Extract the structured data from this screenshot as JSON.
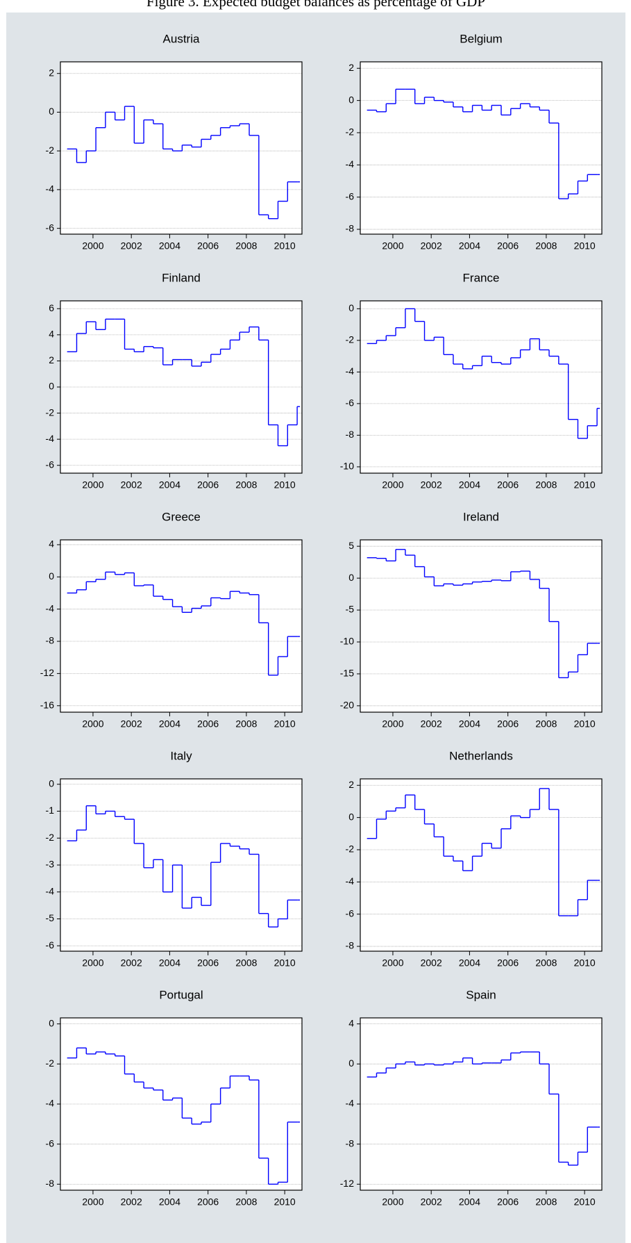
{
  "title": "Figure 3. Expected budget balances as percentage of GDP",
  "chart_data": [
    {
      "type": "line",
      "title": "Austria",
      "x": [
        1998.65,
        1999.15,
        1999.65,
        2000.15,
        2000.65,
        2001.15,
        2001.65,
        2002.15,
        2002.65,
        2003.15,
        2003.65,
        2004.15,
        2004.65,
        2005.15,
        2005.65,
        2006.15,
        2006.65,
        2007.15,
        2007.65,
        2008.15,
        2008.65,
        2009.15,
        2009.65,
        2010.15,
        2010.65
      ],
      "values": [
        -1.9,
        -2.6,
        -2.0,
        -0.8,
        0.0,
        -0.4,
        0.3,
        -1.6,
        -0.4,
        -0.6,
        -1.9,
        -2.0,
        -1.7,
        -1.8,
        -1.4,
        -1.2,
        -0.8,
        -0.7,
        -0.6,
        -1.2,
        -5.3,
        -5.5,
        -4.6,
        -3.6,
        -3.6
      ],
      "color": "#0000ff",
      "xlim": [
        1998.3,
        2010.9
      ],
      "xticks": [
        2000,
        2002,
        2004,
        2006,
        2008,
        2010
      ],
      "ylim": [
        -6.3,
        2.6
      ],
      "yticks": [
        -6,
        -4,
        -2,
        0,
        2
      ],
      "grid": true
    },
    {
      "type": "line",
      "title": "Belgium",
      "x": [
        1998.65,
        1999.15,
        1999.65,
        2000.15,
        2000.65,
        2001.15,
        2001.65,
        2002.15,
        2002.65,
        2003.15,
        2003.65,
        2004.15,
        2004.65,
        2005.15,
        2005.65,
        2006.15,
        2006.65,
        2007.15,
        2007.65,
        2008.15,
        2008.65,
        2009.15,
        2009.65,
        2010.15,
        2010.65
      ],
      "values": [
        -0.6,
        -0.7,
        -0.2,
        0.7,
        0.7,
        -0.2,
        0.2,
        0.0,
        -0.1,
        -0.4,
        -0.7,
        -0.3,
        -0.6,
        -0.3,
        -0.9,
        -0.5,
        -0.2,
        -0.4,
        -0.6,
        -1.4,
        -6.1,
        -5.8,
        -5.0,
        -4.6,
        -4.6
      ],
      "color": "#0000ff",
      "xlim": [
        1998.3,
        2010.9
      ],
      "xticks": [
        2000,
        2002,
        2004,
        2006,
        2008,
        2010
      ],
      "ylim": [
        -8.3,
        2.4
      ],
      "yticks": [
        -8,
        -6,
        -4,
        -2,
        0,
        2
      ],
      "grid": true
    },
    {
      "type": "line",
      "title": "Finland",
      "x": [
        1998.65,
        1999.15,
        1999.65,
        2000.15,
        2000.65,
        2001.15,
        2001.65,
        2002.15,
        2002.65,
        2003.15,
        2003.65,
        2004.15,
        2004.65,
        2005.15,
        2005.65,
        2006.15,
        2006.65,
        2007.15,
        2007.65,
        2008.15,
        2008.65,
        2009.15,
        2009.65,
        2010.15,
        2010.65
      ],
      "values": [
        2.7,
        4.1,
        5.0,
        4.4,
        5.2,
        5.2,
        2.9,
        2.7,
        3.1,
        3.0,
        1.7,
        2.1,
        2.1,
        1.6,
        1.9,
        2.5,
        2.9,
        3.6,
        4.2,
        4.6,
        3.6,
        -2.9,
        -4.5,
        -2.9,
        -1.5
      ],
      "color": "#0000ff",
      "xlim": [
        1998.3,
        2010.9
      ],
      "xticks": [
        2000,
        2002,
        2004,
        2006,
        2008,
        2010
      ],
      "ylim": [
        -6.6,
        6.6
      ],
      "yticks": [
        -6,
        -4,
        -2,
        0,
        2,
        4,
        6
      ],
      "grid": true
    },
    {
      "type": "line",
      "title": "France",
      "x": [
        1998.65,
        1999.15,
        1999.65,
        2000.15,
        2000.65,
        2001.15,
        2001.65,
        2002.15,
        2002.65,
        2003.15,
        2003.65,
        2004.15,
        2004.65,
        2005.15,
        2005.65,
        2006.15,
        2006.65,
        2007.15,
        2007.65,
        2008.15,
        2008.65,
        2009.15,
        2009.65,
        2010.15,
        2010.65
      ],
      "values": [
        -2.2,
        -2.0,
        -1.7,
        -1.2,
        0.0,
        -0.8,
        -2.0,
        -1.8,
        -2.9,
        -3.5,
        -3.8,
        -3.6,
        -3.0,
        -3.4,
        -3.5,
        -3.1,
        -2.6,
        -1.9,
        -2.6,
        -3.0,
        -3.5,
        -7.0,
        -8.2,
        -7.4,
        -6.3
      ],
      "color": "#0000ff",
      "xlim": [
        1998.3,
        2010.9
      ],
      "xticks": [
        2000,
        2002,
        2004,
        2006,
        2008,
        2010
      ],
      "ylim": [
        -10.4,
        0.5
      ],
      "yticks": [
        -10,
        -8,
        -6,
        -4,
        -2,
        0
      ],
      "grid": true
    },
    {
      "type": "line",
      "title": "Greece",
      "x": [
        1998.65,
        1999.15,
        1999.65,
        2000.15,
        2000.65,
        2001.15,
        2001.65,
        2002.15,
        2002.65,
        2003.15,
        2003.65,
        2004.15,
        2004.65,
        2005.15,
        2005.65,
        2006.15,
        2006.65,
        2007.15,
        2007.65,
        2008.15,
        2008.65,
        2009.15,
        2009.65,
        2010.15,
        2010.65
      ],
      "values": [
        -2.0,
        -1.6,
        -0.6,
        -0.3,
        0.6,
        0.3,
        0.5,
        -1.1,
        -1.0,
        -2.4,
        -2.8,
        -3.7,
        -4.4,
        -3.9,
        -3.6,
        -2.6,
        -2.7,
        -1.8,
        -2.0,
        -2.2,
        -5.7,
        -12.2,
        -9.9,
        -7.4,
        -7.4
      ],
      "color": "#0000ff",
      "xlim": [
        1998.3,
        2010.9
      ],
      "xticks": [
        2000,
        2002,
        2004,
        2006,
        2008,
        2010
      ],
      "ylim": [
        -16.8,
        4.6
      ],
      "yticks": [
        -16,
        -12,
        -8,
        -4,
        0,
        4
      ],
      "grid": true
    },
    {
      "type": "line",
      "title": "Ireland",
      "x": [
        1998.65,
        1999.15,
        1999.65,
        2000.15,
        2000.65,
        2001.15,
        2001.65,
        2002.15,
        2002.65,
        2003.15,
        2003.65,
        2004.15,
        2004.65,
        2005.15,
        2005.65,
        2006.15,
        2006.65,
        2007.15,
        2007.65,
        2008.15,
        2008.65,
        2009.15,
        2009.65,
        2010.15,
        2010.65
      ],
      "values": [
        3.2,
        3.1,
        2.7,
        4.5,
        3.6,
        1.8,
        0.2,
        -1.2,
        -0.9,
        -1.1,
        -0.9,
        -0.6,
        -0.5,
        -0.3,
        -0.4,
        1.0,
        1.1,
        -0.2,
        -1.6,
        -6.8,
        -15.6,
        -14.7,
        -12.0,
        -10.2,
        -10.2
      ],
      "color": "#0000ff",
      "xlim": [
        1998.3,
        2010.9
      ],
      "xticks": [
        2000,
        2002,
        2004,
        2006,
        2008,
        2010
      ],
      "ylim": [
        -21,
        6
      ],
      "yticks": [
        -20,
        -15,
        -10,
        -5,
        0,
        5
      ],
      "grid": true
    },
    {
      "type": "line",
      "title": "Italy",
      "x": [
        1998.65,
        1999.15,
        1999.65,
        2000.15,
        2000.65,
        2001.15,
        2001.65,
        2002.15,
        2002.65,
        2003.15,
        2003.65,
        2004.15,
        2004.65,
        2005.15,
        2005.65,
        2006.15,
        2006.65,
        2007.15,
        2007.65,
        2008.15,
        2008.65,
        2009.15,
        2009.65,
        2010.15,
        2010.65
      ],
      "values": [
        -2.1,
        -1.7,
        -0.8,
        -1.1,
        -1.0,
        -1.2,
        -1.3,
        -2.2,
        -3.1,
        -2.8,
        -4.0,
        -3.0,
        -4.6,
        -4.2,
        -4.5,
        -2.9,
        -2.2,
        -2.3,
        -2.4,
        -2.6,
        -4.8,
        -5.3,
        -5.0,
        -4.3,
        -4.3
      ],
      "color": "#0000ff",
      "xlim": [
        1998.3,
        2010.9
      ],
      "xticks": [
        2000,
        2002,
        2004,
        2006,
        2008,
        2010
      ],
      "ylim": [
        -6.2,
        0.2
      ],
      "yticks": [
        -6,
        -5,
        -4,
        -3,
        -2,
        -1,
        0
      ],
      "grid": true
    },
    {
      "type": "line",
      "title": "Netherlands",
      "x": [
        1998.65,
        1999.15,
        1999.65,
        2000.15,
        2000.65,
        2001.15,
        2001.65,
        2002.15,
        2002.65,
        2003.15,
        2003.65,
        2004.15,
        2004.65,
        2005.15,
        2005.65,
        2006.15,
        2006.65,
        2007.15,
        2007.65,
        2008.15,
        2008.65,
        2009.15,
        2009.65,
        2010.15,
        2010.65
      ],
      "values": [
        -1.3,
        -0.1,
        0.4,
        0.6,
        1.4,
        0.5,
        -0.4,
        -1.2,
        -2.4,
        -2.7,
        -3.3,
        -2.4,
        -1.6,
        -1.9,
        -0.7,
        0.1,
        0.0,
        0.5,
        1.8,
        0.5,
        -6.1,
        -6.1,
        -5.1,
        -3.9,
        -3.9
      ],
      "color": "#0000ff",
      "xlim": [
        1998.3,
        2010.9
      ],
      "xticks": [
        2000,
        2002,
        2004,
        2006,
        2008,
        2010
      ],
      "ylim": [
        -8.3,
        2.4
      ],
      "yticks": [
        -8,
        -6,
        -4,
        -2,
        0,
        2
      ],
      "grid": true
    },
    {
      "type": "line",
      "title": "Portugal",
      "x": [
        1998.65,
        1999.15,
        1999.65,
        2000.15,
        2000.65,
        2001.15,
        2001.65,
        2002.15,
        2002.65,
        2003.15,
        2003.65,
        2004.15,
        2004.65,
        2005.15,
        2005.65,
        2006.15,
        2006.65,
        2007.15,
        2007.65,
        2008.15,
        2008.65,
        2009.15,
        2009.65,
        2010.15,
        2010.65
      ],
      "values": [
        -1.7,
        -1.2,
        -1.5,
        -1.4,
        -1.5,
        -1.6,
        -2.5,
        -2.9,
        -3.2,
        -3.3,
        -3.8,
        -3.7,
        -4.7,
        -5.0,
        -4.9,
        -4.0,
        -3.2,
        -2.6,
        -2.6,
        -2.8,
        -6.7,
        -8.0,
        -7.9,
        -4.9,
        -4.9
      ],
      "color": "#0000ff",
      "xlim": [
        1998.3,
        2010.9
      ],
      "xticks": [
        2000,
        2002,
        2004,
        2006,
        2008,
        2010
      ],
      "ylim": [
        -8.3,
        0.3
      ],
      "yticks": [
        -8,
        -6,
        -4,
        -2,
        0
      ],
      "grid": true
    },
    {
      "type": "line",
      "title": "Spain",
      "x": [
        1998.65,
        1999.15,
        1999.65,
        2000.15,
        2000.65,
        2001.15,
        2001.65,
        2002.15,
        2002.65,
        2003.15,
        2003.65,
        2004.15,
        2004.65,
        2005.15,
        2005.65,
        2006.15,
        2006.65,
        2007.15,
        2007.65,
        2008.15,
        2008.65,
        2009.15,
        2009.65,
        2010.15,
        2010.65
      ],
      "values": [
        -1.3,
        -0.9,
        -0.4,
        0.0,
        0.2,
        -0.1,
        0.0,
        -0.1,
        0.0,
        0.2,
        0.6,
        0.0,
        0.1,
        0.1,
        0.4,
        1.1,
        1.2,
        1.2,
        0.0,
        -3.0,
        -9.8,
        -10.1,
        -8.8,
        -6.3,
        -6.3
      ],
      "color": "#0000ff",
      "xlim": [
        1998.3,
        2010.9
      ],
      "xticks": [
        2000,
        2002,
        2004,
        2006,
        2008,
        2010
      ],
      "ylim": [
        -12.6,
        4.6
      ],
      "yticks": [
        -12,
        -8,
        -4,
        0,
        4
      ],
      "grid": true
    }
  ]
}
